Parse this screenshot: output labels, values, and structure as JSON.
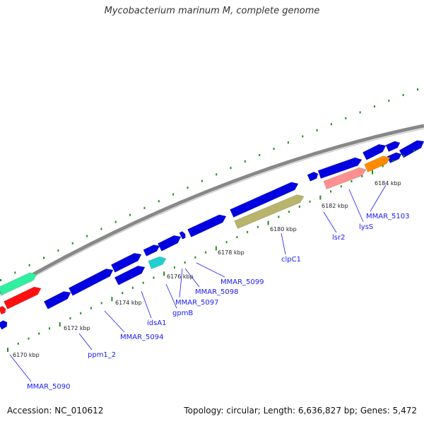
{
  "title": "Mycobacterium marinum M, complete genome",
  "footer": {
    "accession": "Accession: NC_010612",
    "summary": "Topology: circular; Length: 6,636,827 bp; Genes: 5,472"
  },
  "colors": {
    "cds": "#0000e0",
    "trna": "#ff9090",
    "rrna": "#ff8c00",
    "teal": "#20d0d0",
    "khaki": "#b8b46c",
    "red": "#ff1010",
    "mint": "#30f0a0",
    "backbone": "#888888",
    "tick": "#228b22",
    "label": "#1a1aff"
  },
  "kbp_labels": [
    "6170 kbp",
    "6172 kbp",
    "6174 kbp",
    "6176 kbp",
    "6178 kbp",
    "6180 kbp",
    "6182 kbp",
    "6184 kbp"
  ],
  "gene_labels": [
    "MMAR_5090",
    "ppm1_2",
    "MMAR_5094",
    "idsA1",
    "gpmB",
    "MMAR_5097",
    "MMAR_5098",
    "MMAR_5099",
    "clpC1",
    "lsr2",
    "lysS",
    "MMAR_5103"
  ]
}
